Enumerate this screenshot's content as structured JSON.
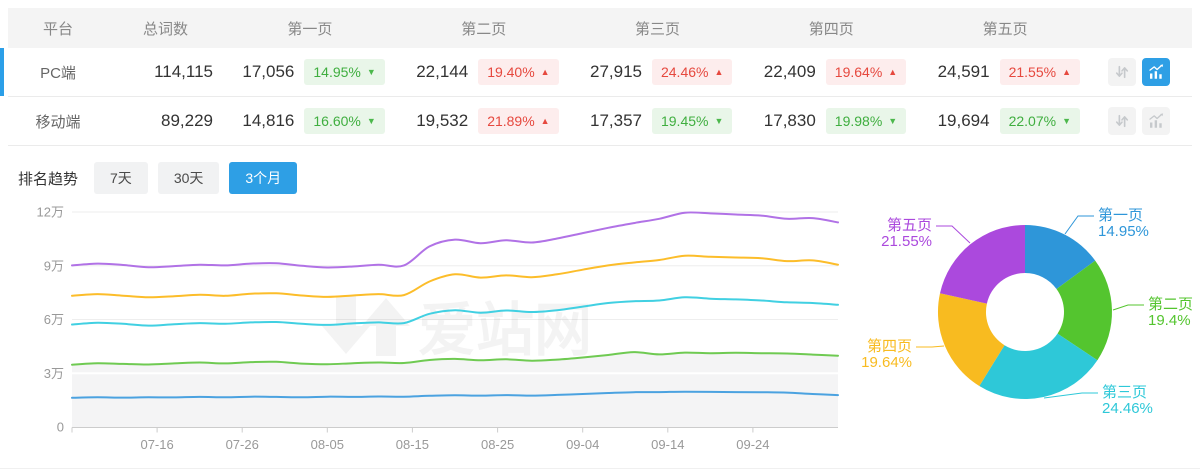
{
  "table": {
    "columns": [
      "平台",
      "总词数",
      "第一页",
      "第二页",
      "第三页",
      "第四页",
      "第五页"
    ],
    "rows": [
      {
        "platform": "PC端",
        "total": "114,115",
        "selected": true,
        "chart_active": true,
        "pages": [
          {
            "value": "17,056",
            "pct": "14.95%",
            "dir": "down"
          },
          {
            "value": "22,144",
            "pct": "19.40%",
            "dir": "up"
          },
          {
            "value": "27,915",
            "pct": "24.46%",
            "dir": "up"
          },
          {
            "value": "22,409",
            "pct": "19.64%",
            "dir": "up"
          },
          {
            "value": "24,591",
            "pct": "21.55%",
            "dir": "up"
          }
        ]
      },
      {
        "platform": "移动端",
        "total": "89,229",
        "selected": false,
        "chart_active": false,
        "pages": [
          {
            "value": "14,816",
            "pct": "16.60%",
            "dir": "down"
          },
          {
            "value": "19,532",
            "pct": "21.89%",
            "dir": "up"
          },
          {
            "value": "17,357",
            "pct": "19.45%",
            "dir": "down"
          },
          {
            "value": "17,830",
            "pct": "19.98%",
            "dir": "down"
          },
          {
            "value": "19,694",
            "pct": "22.07%",
            "dir": "down"
          }
        ]
      }
    ]
  },
  "trend": {
    "title": "排名趋势",
    "ranges": [
      "7天",
      "30天",
      "3个月"
    ],
    "active_range": "3个月"
  },
  "watermark": "爱站网",
  "colors": {
    "accent": "#2e9fe5",
    "badge_down_text": "#3fae3f",
    "badge_up_text": "#e6483e",
    "grid": "#eeeeee",
    "axis": "#cccccc",
    "axis_label": "#999999",
    "area_fill": "#f4f4f5"
  },
  "chart_data": [
    {
      "type": "line",
      "title": "排名趋势 3个月",
      "value_unit": "万",
      "ylim": [
        0,
        12
      ],
      "y_ticks": [
        "0",
        "3万",
        "6万",
        "9万",
        "12万"
      ],
      "x_tick_labels": [
        "07-16",
        "07-26",
        "08-05",
        "08-15",
        "08-25",
        "09-04",
        "09-14",
        "09-24"
      ],
      "x": [
        "07-06",
        "07-09",
        "07-12",
        "07-15",
        "07-18",
        "07-21",
        "07-24",
        "07-27",
        "07-30",
        "08-02",
        "08-05",
        "08-08",
        "08-11",
        "08-14",
        "08-17",
        "08-20",
        "08-23",
        "08-26",
        "08-29",
        "09-01",
        "09-04",
        "09-07",
        "09-10",
        "09-13",
        "09-16",
        "09-19",
        "09-22",
        "09-25",
        "09-28",
        "10-01",
        "10-04"
      ],
      "series": [
        {
          "name": "line-1",
          "color": "#4ba2e0",
          "area": false,
          "values": [
            1.63,
            1.66,
            1.64,
            1.66,
            1.65,
            1.68,
            1.66,
            1.69,
            1.68,
            1.66,
            1.69,
            1.68,
            1.7,
            1.69,
            1.74,
            1.77,
            1.75,
            1.78,
            1.75,
            1.79,
            1.84,
            1.9,
            1.94,
            1.95,
            1.97,
            1.96,
            1.95,
            1.94,
            1.92,
            1.84,
            1.78
          ]
        },
        {
          "name": "line-2",
          "color": "#6fca52",
          "area": true,
          "values": [
            3.48,
            3.56,
            3.52,
            3.49,
            3.55,
            3.6,
            3.55,
            3.62,
            3.64,
            3.54,
            3.5,
            3.56,
            3.6,
            3.57,
            3.74,
            3.8,
            3.72,
            3.78,
            3.7,
            3.76,
            3.88,
            4.02,
            4.18,
            4.05,
            4.15,
            4.12,
            4.14,
            4.12,
            4.1,
            4.04,
            3.98
          ]
        },
        {
          "name": "line-3",
          "color": "#41d0e2",
          "area": false,
          "values": [
            5.72,
            5.82,
            5.76,
            5.66,
            5.74,
            5.8,
            5.76,
            5.84,
            5.86,
            5.76,
            5.7,
            5.78,
            5.84,
            5.8,
            6.32,
            6.52,
            6.38,
            6.5,
            6.42,
            6.52,
            6.72,
            6.92,
            7.02,
            7.06,
            7.24,
            7.16,
            7.12,
            7.06,
            6.96,
            6.92,
            6.82
          ]
        },
        {
          "name": "line-4",
          "color": "#fcbd2a",
          "area": false,
          "values": [
            7.32,
            7.42,
            7.33,
            7.24,
            7.3,
            7.38,
            7.32,
            7.44,
            7.46,
            7.34,
            7.26,
            7.34,
            7.42,
            7.36,
            8.12,
            8.52,
            8.34,
            8.46,
            8.36,
            8.52,
            8.78,
            9.02,
            9.18,
            9.32,
            9.56,
            9.5,
            9.46,
            9.42,
            9.26,
            9.3,
            9.06
          ]
        },
        {
          "name": "line-5",
          "color": "#b172e6",
          "area": false,
          "values": [
            9.02,
            9.12,
            9.04,
            8.92,
            8.98,
            9.06,
            9.02,
            9.12,
            9.14,
            9.0,
            8.9,
            8.96,
            9.06,
            9.02,
            10.08,
            10.46,
            10.26,
            10.42,
            10.3,
            10.52,
            10.82,
            11.12,
            11.38,
            11.62,
            11.96,
            11.92,
            11.86,
            11.8,
            11.62,
            11.66,
            11.42
          ]
        }
      ]
    },
    {
      "type": "pie",
      "donut": true,
      "labels": [
        "第一页",
        "第二页",
        "第三页",
        "第四页",
        "第五页"
      ],
      "values": [
        14.95,
        19.4,
        24.46,
        19.64,
        21.55
      ],
      "value_labels": [
        "14.95%",
        "19.4%",
        "24.46%",
        "19.64%",
        "21.55%"
      ],
      "colors": [
        "#2e96d9",
        "#54c52f",
        "#2ec8d8",
        "#f8bb20",
        "#ab49dd"
      ]
    }
  ]
}
